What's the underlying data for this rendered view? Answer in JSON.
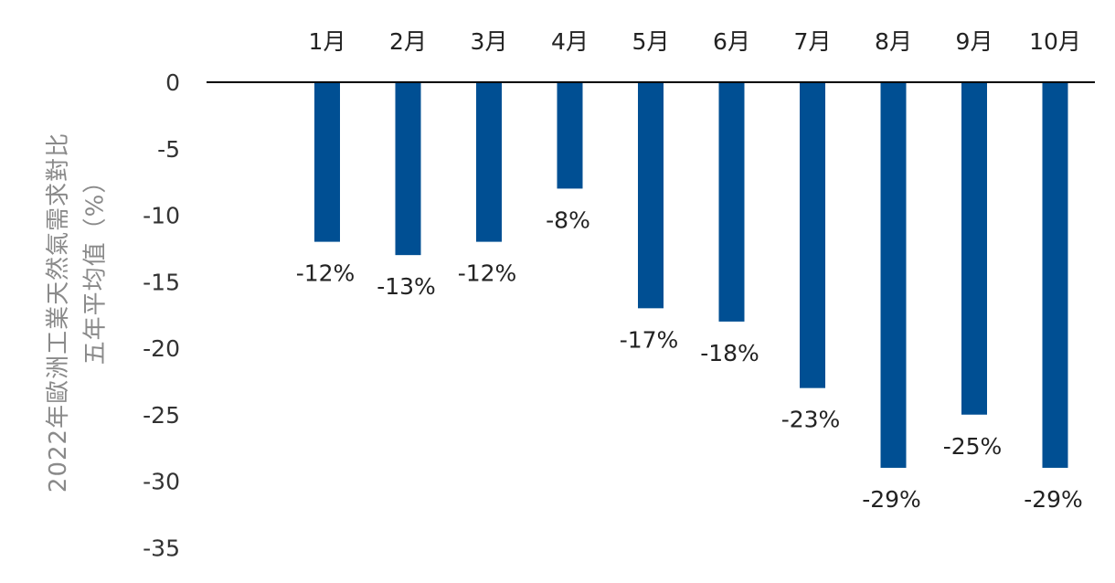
{
  "chart_data": {
    "type": "bar",
    "categories": [
      "1月",
      "2月",
      "3月",
      "4月",
      "5月",
      "6月",
      "7月",
      "8月",
      "9月",
      "10月"
    ],
    "values": [
      -12,
      -13,
      -12,
      -8,
      -17,
      -18,
      -23,
      -29,
      -25,
      -29
    ],
    "data_labels": [
      "-12%",
      "-13%",
      "-12%",
      "-8%",
      "-17%",
      "-18%",
      "-23%",
      "-29%",
      "-25%",
      "-29%"
    ],
    "ylabel_line1": "2022年歐洲工業天然氣需求對比",
    "ylabel_line2": "五年平均值（%）",
    "yticks": [
      0,
      -5,
      -10,
      -15,
      -20,
      -25,
      -30,
      -35
    ],
    "ylim": [
      -35,
      0
    ],
    "bar_color": "#004f93",
    "axis_color": "#000000",
    "tick_color": "#333333",
    "ytitle_color": "#8a8a8a",
    "grid": false
  }
}
